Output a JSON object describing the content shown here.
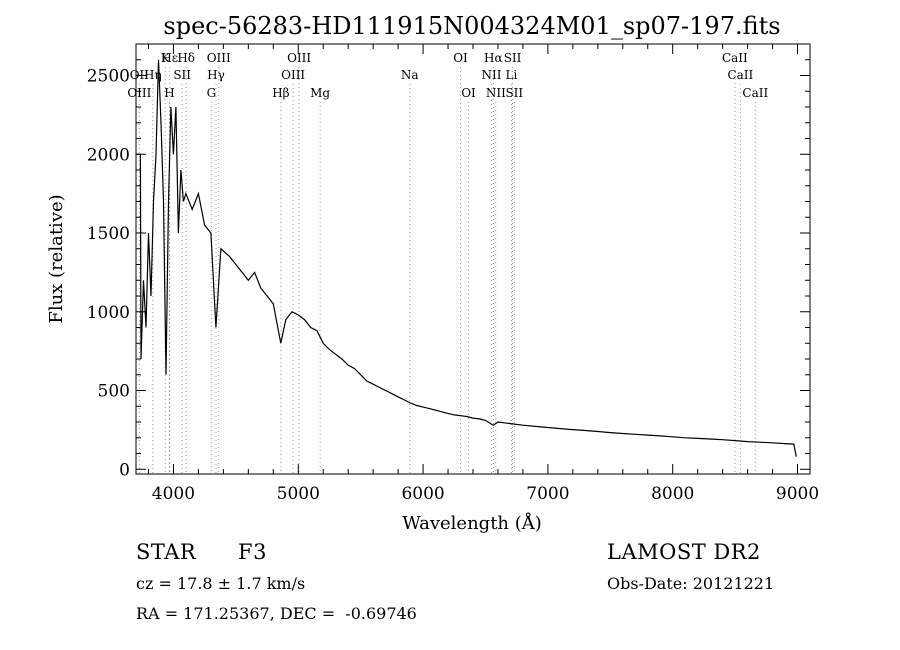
{
  "chart_data": {
    "type": "line",
    "title": "spec-56283-HD111915N004324M01_sp07-197.fits",
    "xlabel": "Wavelength (Å)",
    "ylabel": "Flux (relative)",
    "xlim": [
      3700,
      9100
    ],
    "ylim": [
      -30,
      2700
    ],
    "x_ticks": [
      4000,
      5000,
      6000,
      7000,
      8000,
      9000
    ],
    "y_ticks": [
      0,
      500,
      1000,
      1500,
      2000,
      2500
    ],
    "grid": false,
    "series": [
      {
        "color": "#000000",
        "points": [
          [
            3700,
            2000
          ],
          [
            3735,
            2000
          ],
          [
            3740,
            700
          ],
          [
            3760,
            1200
          ],
          [
            3780,
            900
          ],
          [
            3800,
            1500
          ],
          [
            3820,
            1100
          ],
          [
            3840,
            1700
          ],
          [
            3860,
            2000
          ],
          [
            3880,
            2600
          ],
          [
            3900,
            2200
          ],
          [
            3920,
            1700
          ],
          [
            3940,
            600
          ],
          [
            3960,
            1700
          ],
          [
            3980,
            2300
          ],
          [
            4000,
            2000
          ],
          [
            4020,
            2300
          ],
          [
            4040,
            1500
          ],
          [
            4060,
            1900
          ],
          [
            4080,
            1700
          ],
          [
            4100,
            1750
          ],
          [
            4150,
            1650
          ],
          [
            4200,
            1750
          ],
          [
            4250,
            1550
          ],
          [
            4300,
            1500
          ],
          [
            4340,
            900
          ],
          [
            4380,
            1400
          ],
          [
            4450,
            1350
          ],
          [
            4500,
            1300
          ],
          [
            4550,
            1250
          ],
          [
            4600,
            1200
          ],
          [
            4650,
            1250
          ],
          [
            4700,
            1150
          ],
          [
            4750,
            1100
          ],
          [
            4800,
            1050
          ],
          [
            4860,
            800
          ],
          [
            4900,
            950
          ],
          [
            4950,
            1000
          ],
          [
            5000,
            980
          ],
          [
            5050,
            950
          ],
          [
            5100,
            900
          ],
          [
            5150,
            880
          ],
          [
            5200,
            800
          ],
          [
            5250,
            760
          ],
          [
            5300,
            730
          ],
          [
            5350,
            700
          ],
          [
            5400,
            660
          ],
          [
            5450,
            640
          ],
          [
            5500,
            600
          ],
          [
            5550,
            560
          ],
          [
            5600,
            540
          ],
          [
            5650,
            520
          ],
          [
            5700,
            500
          ],
          [
            5750,
            480
          ],
          [
            5800,
            460
          ],
          [
            5850,
            440
          ],
          [
            5900,
            420
          ],
          [
            5950,
            405
          ],
          [
            6000,
            395
          ],
          [
            6050,
            385
          ],
          [
            6100,
            375
          ],
          [
            6150,
            365
          ],
          [
            6200,
            355
          ],
          [
            6250,
            345
          ],
          [
            6300,
            340
          ],
          [
            6350,
            335
          ],
          [
            6400,
            325
          ],
          [
            6450,
            320
          ],
          [
            6500,
            310
          ],
          [
            6563,
            280
          ],
          [
            6600,
            300
          ],
          [
            6650,
            295
          ],
          [
            6700,
            290
          ],
          [
            6800,
            280
          ],
          [
            6900,
            272
          ],
          [
            7000,
            265
          ],
          [
            7100,
            258
          ],
          [
            7200,
            252
          ],
          [
            7300,
            246
          ],
          [
            7400,
            240
          ],
          [
            7500,
            233
          ],
          [
            7600,
            227
          ],
          [
            7700,
            222
          ],
          [
            7800,
            217
          ],
          [
            7900,
            212
          ],
          [
            8000,
            206
          ],
          [
            8100,
            200
          ],
          [
            8200,
            196
          ],
          [
            8300,
            192
          ],
          [
            8400,
            188
          ],
          [
            8500,
            182
          ],
          [
            8600,
            176
          ],
          [
            8700,
            172
          ],
          [
            8800,
            168
          ],
          [
            8900,
            163
          ],
          [
            8970,
            160
          ],
          [
            8990,
            80
          ]
        ]
      }
    ],
    "line_markers": [
      {
        "label": "Hε",
        "x": 3970,
        "row": 0
      },
      {
        "label": "K",
        "x": 3934,
        "row": 0
      },
      {
        "label": "Hδ",
        "x": 4102,
        "row": 0
      },
      {
        "label": "OIII",
        "x": 4363,
        "row": 0
      },
      {
        "label": "OIII",
        "x": 5007,
        "row": 0
      },
      {
        "label": "OI",
        "x": 6300,
        "row": 0
      },
      {
        "label": "Hα",
        "x": 6563,
        "row": 0
      },
      {
        "label": "SII",
        "x": 6717,
        "row": 0
      },
      {
        "label": "CaII",
        "x": 8498,
        "row": 0
      },
      {
        "label": "OII",
        "x": 3727,
        "row": 1
      },
      {
        "label": "Hη",
        "x": 3835,
        "row": 1
      },
      {
        "label": "SII",
        "x": 4070,
        "row": 1
      },
      {
        "label": "Hγ",
        "x": 4341,
        "row": 1
      },
      {
        "label": "OIII",
        "x": 4959,
        "row": 1
      },
      {
        "label": "Na",
        "x": 5893,
        "row": 1
      },
      {
        "label": "NII",
        "x": 6548,
        "row": 1
      },
      {
        "label": "Li",
        "x": 6708,
        "row": 1
      },
      {
        "label": "CaII",
        "x": 8542,
        "row": 1
      },
      {
        "label": "OIII",
        "x": 3727,
        "row": 2
      },
      {
        "label": "H",
        "x": 3968,
        "row": 2
      },
      {
        "label": "G",
        "x": 4304,
        "row": 2
      },
      {
        "label": "Hβ",
        "x": 4861,
        "row": 2
      },
      {
        "label": "Mg",
        "x": 5175,
        "row": 2
      },
      {
        "label": "OI",
        "x": 6364,
        "row": 2
      },
      {
        "label": "NII",
        "x": 6583,
        "row": 2
      },
      {
        "label": "SII",
        "x": 6731,
        "row": 2
      },
      {
        "label": "CaII",
        "x": 8662,
        "row": 2
      }
    ]
  },
  "info": {
    "object_class": "STAR",
    "subclass": "F3",
    "survey": "LAMOST DR2",
    "redshift": "cz = 17.8 ± 1.7 km/s",
    "obs_date": "Obs-Date: 20121221",
    "coords": "RA = 171.25367, DEC =  -0.69746"
  }
}
